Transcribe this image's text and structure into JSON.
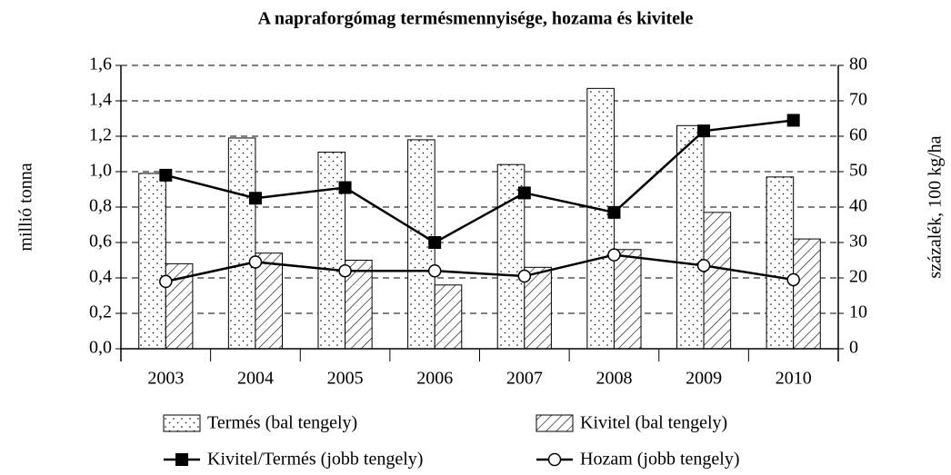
{
  "chart_data": {
    "type": "bar",
    "title": "A napraforgómag termésmennyisége, hozama és kivitele",
    "y_label": "millió tonna",
    "y2_label": "százalék, 100 kg/ha",
    "categories": [
      "2003",
      "2004",
      "2005",
      "2006",
      "2007",
      "2008",
      "2009",
      "2010"
    ],
    "ylim": [
      0,
      1.6
    ],
    "yticks": [
      {
        "value": 0,
        "label": "0,0"
      },
      {
        "value": 0.2,
        "label": "0,2"
      },
      {
        "value": 0.4,
        "label": "0,4"
      },
      {
        "value": 0.6,
        "label": "0,6"
      },
      {
        "value": 0.8,
        "label": "0,8"
      },
      {
        "value": 1.0,
        "label": "1,0"
      },
      {
        "value": 1.2,
        "label": "1,2"
      },
      {
        "value": 1.4,
        "label": "1,4"
      },
      {
        "value": 1.6,
        "label": "1,6"
      }
    ],
    "y2lim": [
      0,
      80
    ],
    "y2ticks": [
      0,
      10,
      20,
      30,
      40,
      50,
      60,
      70,
      80
    ],
    "grid": true,
    "series": [
      {
        "name": "Termés (bal tengely)",
        "type": "bar",
        "pattern": "dots",
        "color": "#000000",
        "values": [
          0.99,
          1.19,
          1.11,
          1.18,
          1.04,
          1.47,
          1.26,
          0.97
        ]
      },
      {
        "name": "Kivitel (bal tengely)",
        "type": "bar",
        "pattern": "hatch",
        "color": "#000000",
        "values": [
          0.48,
          0.54,
          0.5,
          0.36,
          0.46,
          0.56,
          0.77,
          0.62
        ]
      },
      {
        "name": "Kivitel/Termés (jobb tengely)",
        "type": "line",
        "marker": "square",
        "axis": "y2",
        "color": "#000000",
        "values": [
          49,
          42.5,
          45.5,
          30,
          44,
          38.5,
          61.5,
          64.5
        ]
      },
      {
        "name": "Hozam (jobb tengely)",
        "type": "line",
        "marker": "circle",
        "axis": "y2",
        "color": "#000000",
        "values": [
          19,
          24.5,
          22,
          22,
          20.5,
          26.5,
          23.5,
          19.5
        ]
      }
    ]
  }
}
